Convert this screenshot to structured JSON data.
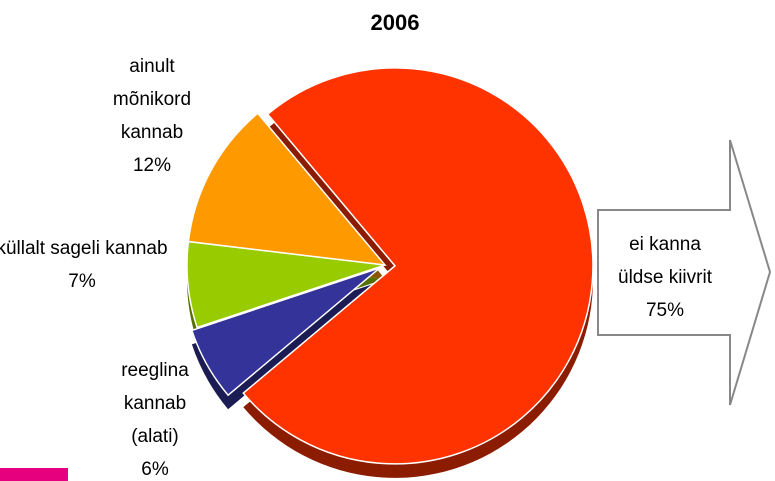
{
  "chart_data": {
    "type": "pie",
    "title": "2006",
    "categories": [
      "ei kanna üldse kiivrit",
      "reeglina kannab (alati)",
      "küllalt sageli kannab",
      "ainult mõnikord kannab"
    ],
    "values": [
      75,
      6,
      7,
      12
    ],
    "value_labels": [
      "75%",
      "6%",
      "7%",
      "12%"
    ],
    "colors": [
      "#ff3300",
      "#333399",
      "#99cc00",
      "#ff9900"
    ]
  }
}
